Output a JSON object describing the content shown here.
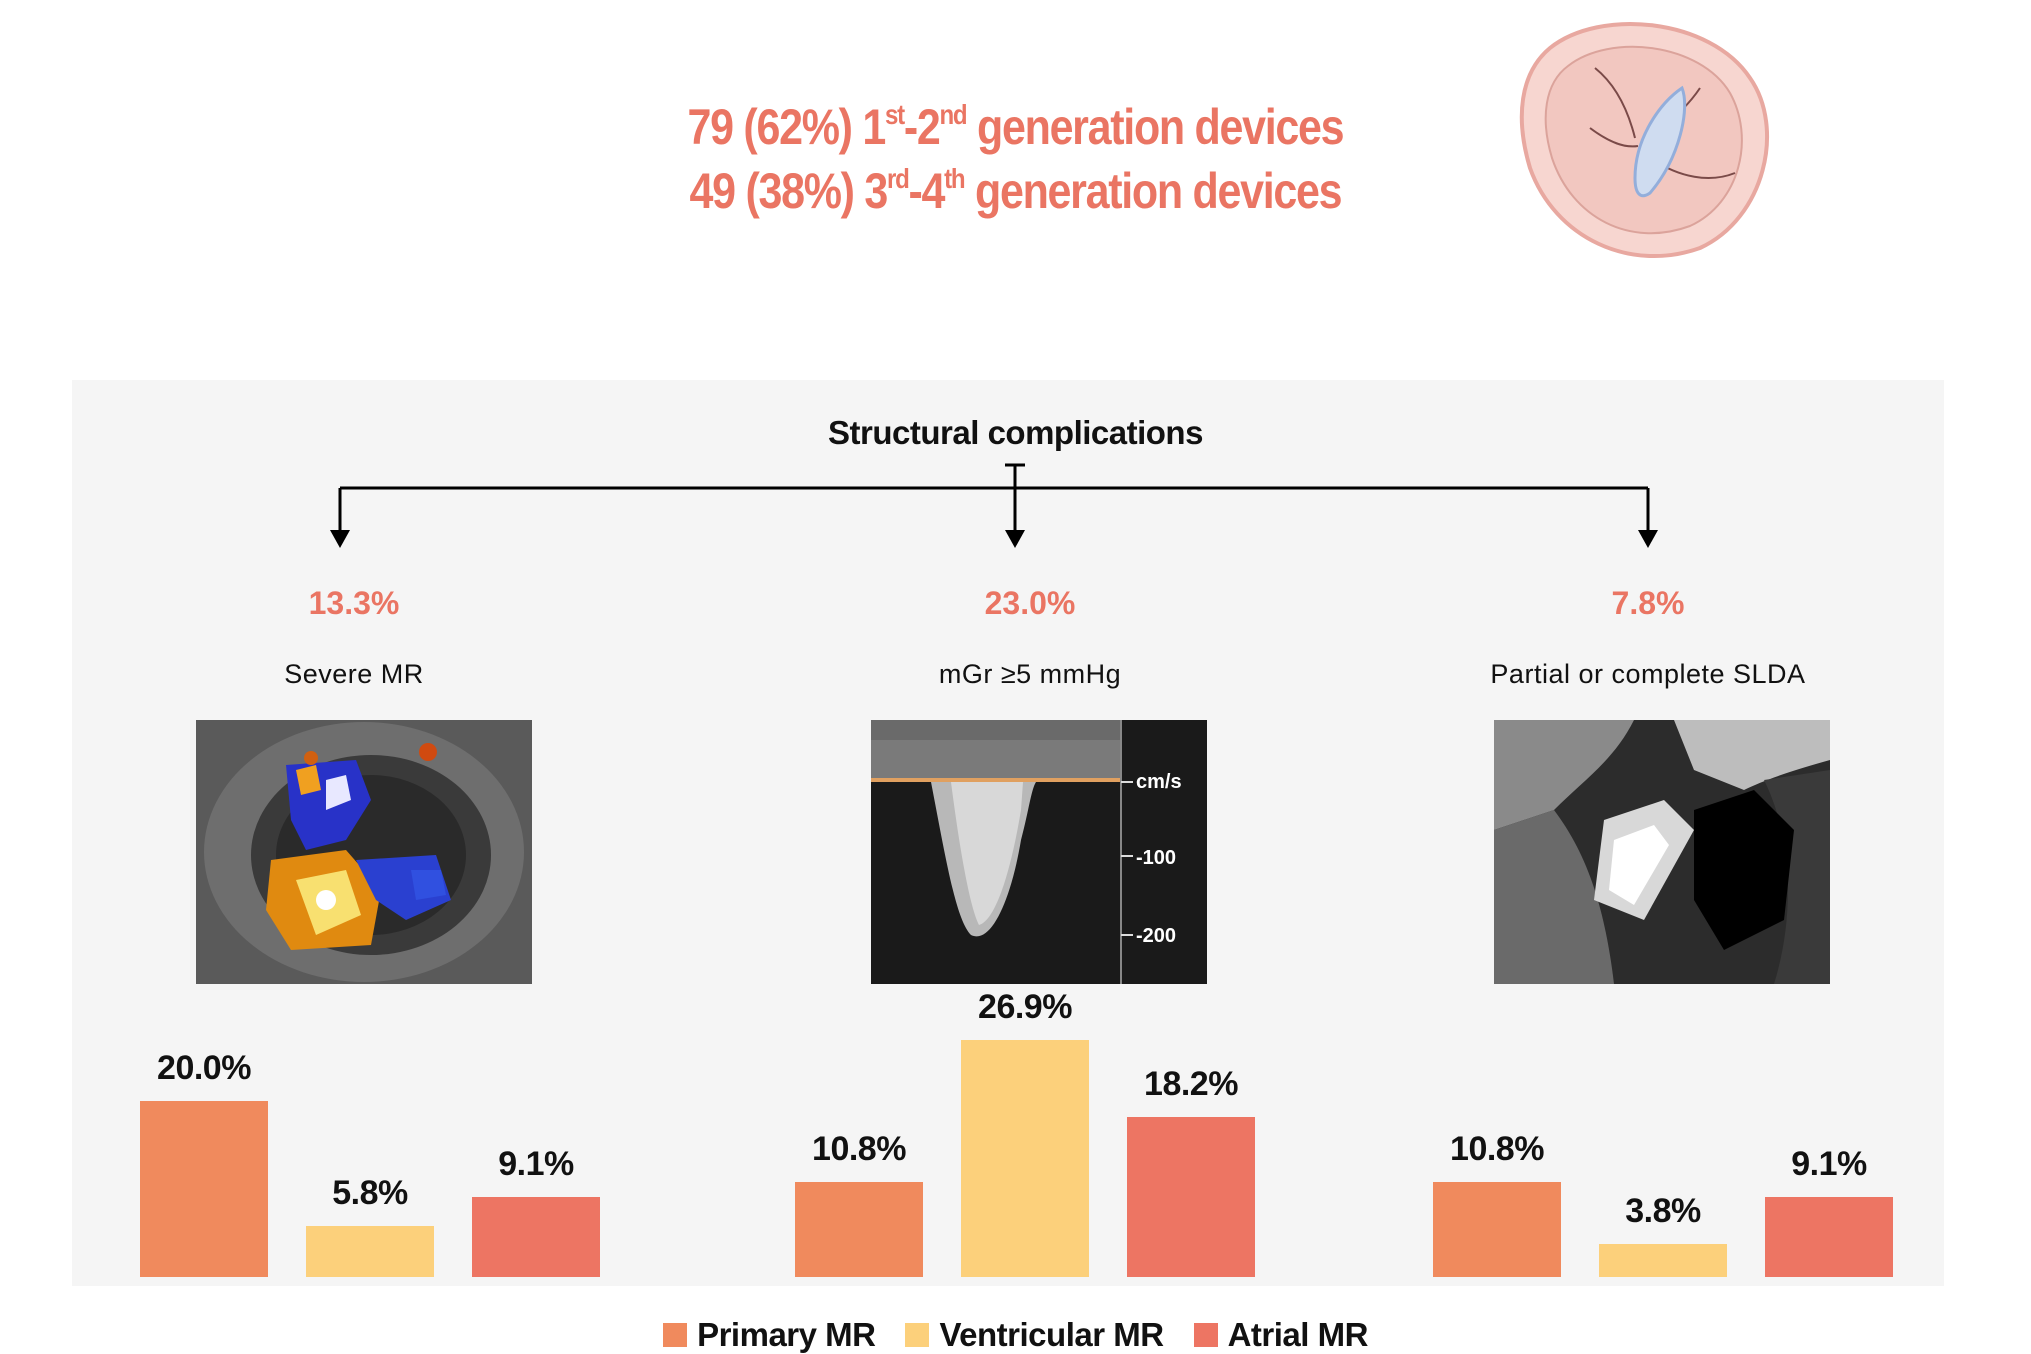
{
  "header": {
    "line1": {
      "count": "79 (62%) 1",
      "sup1": "st",
      "mid": "-2",
      "sup2": "nd",
      "tail": " generation devices"
    },
    "line2": {
      "count": "49 (38%) 3",
      "sup1": "rd",
      "mid": "-4",
      "sup2": "th",
      "tail": " generation devices"
    }
  },
  "colors": {
    "primary": "#f08a5d",
    "ventricular": "#fcd07b",
    "atrial": "#ed7563",
    "accent": "#ea7563",
    "panel": "#f5f5f5"
  },
  "chart_data": {
    "type": "bar",
    "title": "Structural complications",
    "series_names": [
      "Primary MR",
      "Ventricular MR",
      "Atrial MR"
    ],
    "ylim": [
      0,
      30
    ],
    "groups": [
      {
        "category": "Severe MR",
        "overall": "13.3%",
        "values": [
          20.0,
          5.8,
          9.1
        ],
        "labels": [
          "20.0%",
          "5.8%",
          "9.1%"
        ],
        "image_name": "color-doppler-image"
      },
      {
        "category": "mGr ≥5 mmHg",
        "overall": "23.0%",
        "values": [
          10.8,
          26.9,
          18.2
        ],
        "labels": [
          "10.8%",
          "26.9%",
          "18.2%"
        ],
        "image_name": "doppler-spectrum-image",
        "image_scale": [
          "cm/s",
          "-100",
          "-200"
        ]
      },
      {
        "category": "Partial or complete SLDA",
        "overall": "7.8%",
        "values": [
          10.8,
          3.8,
          9.1
        ],
        "labels": [
          "10.8%",
          "3.8%",
          "9.1%"
        ],
        "image_name": "echo-slda-image"
      }
    ],
    "legend": [
      "Primary MR",
      "Ventricular MR",
      "Atrial MR"
    ]
  }
}
